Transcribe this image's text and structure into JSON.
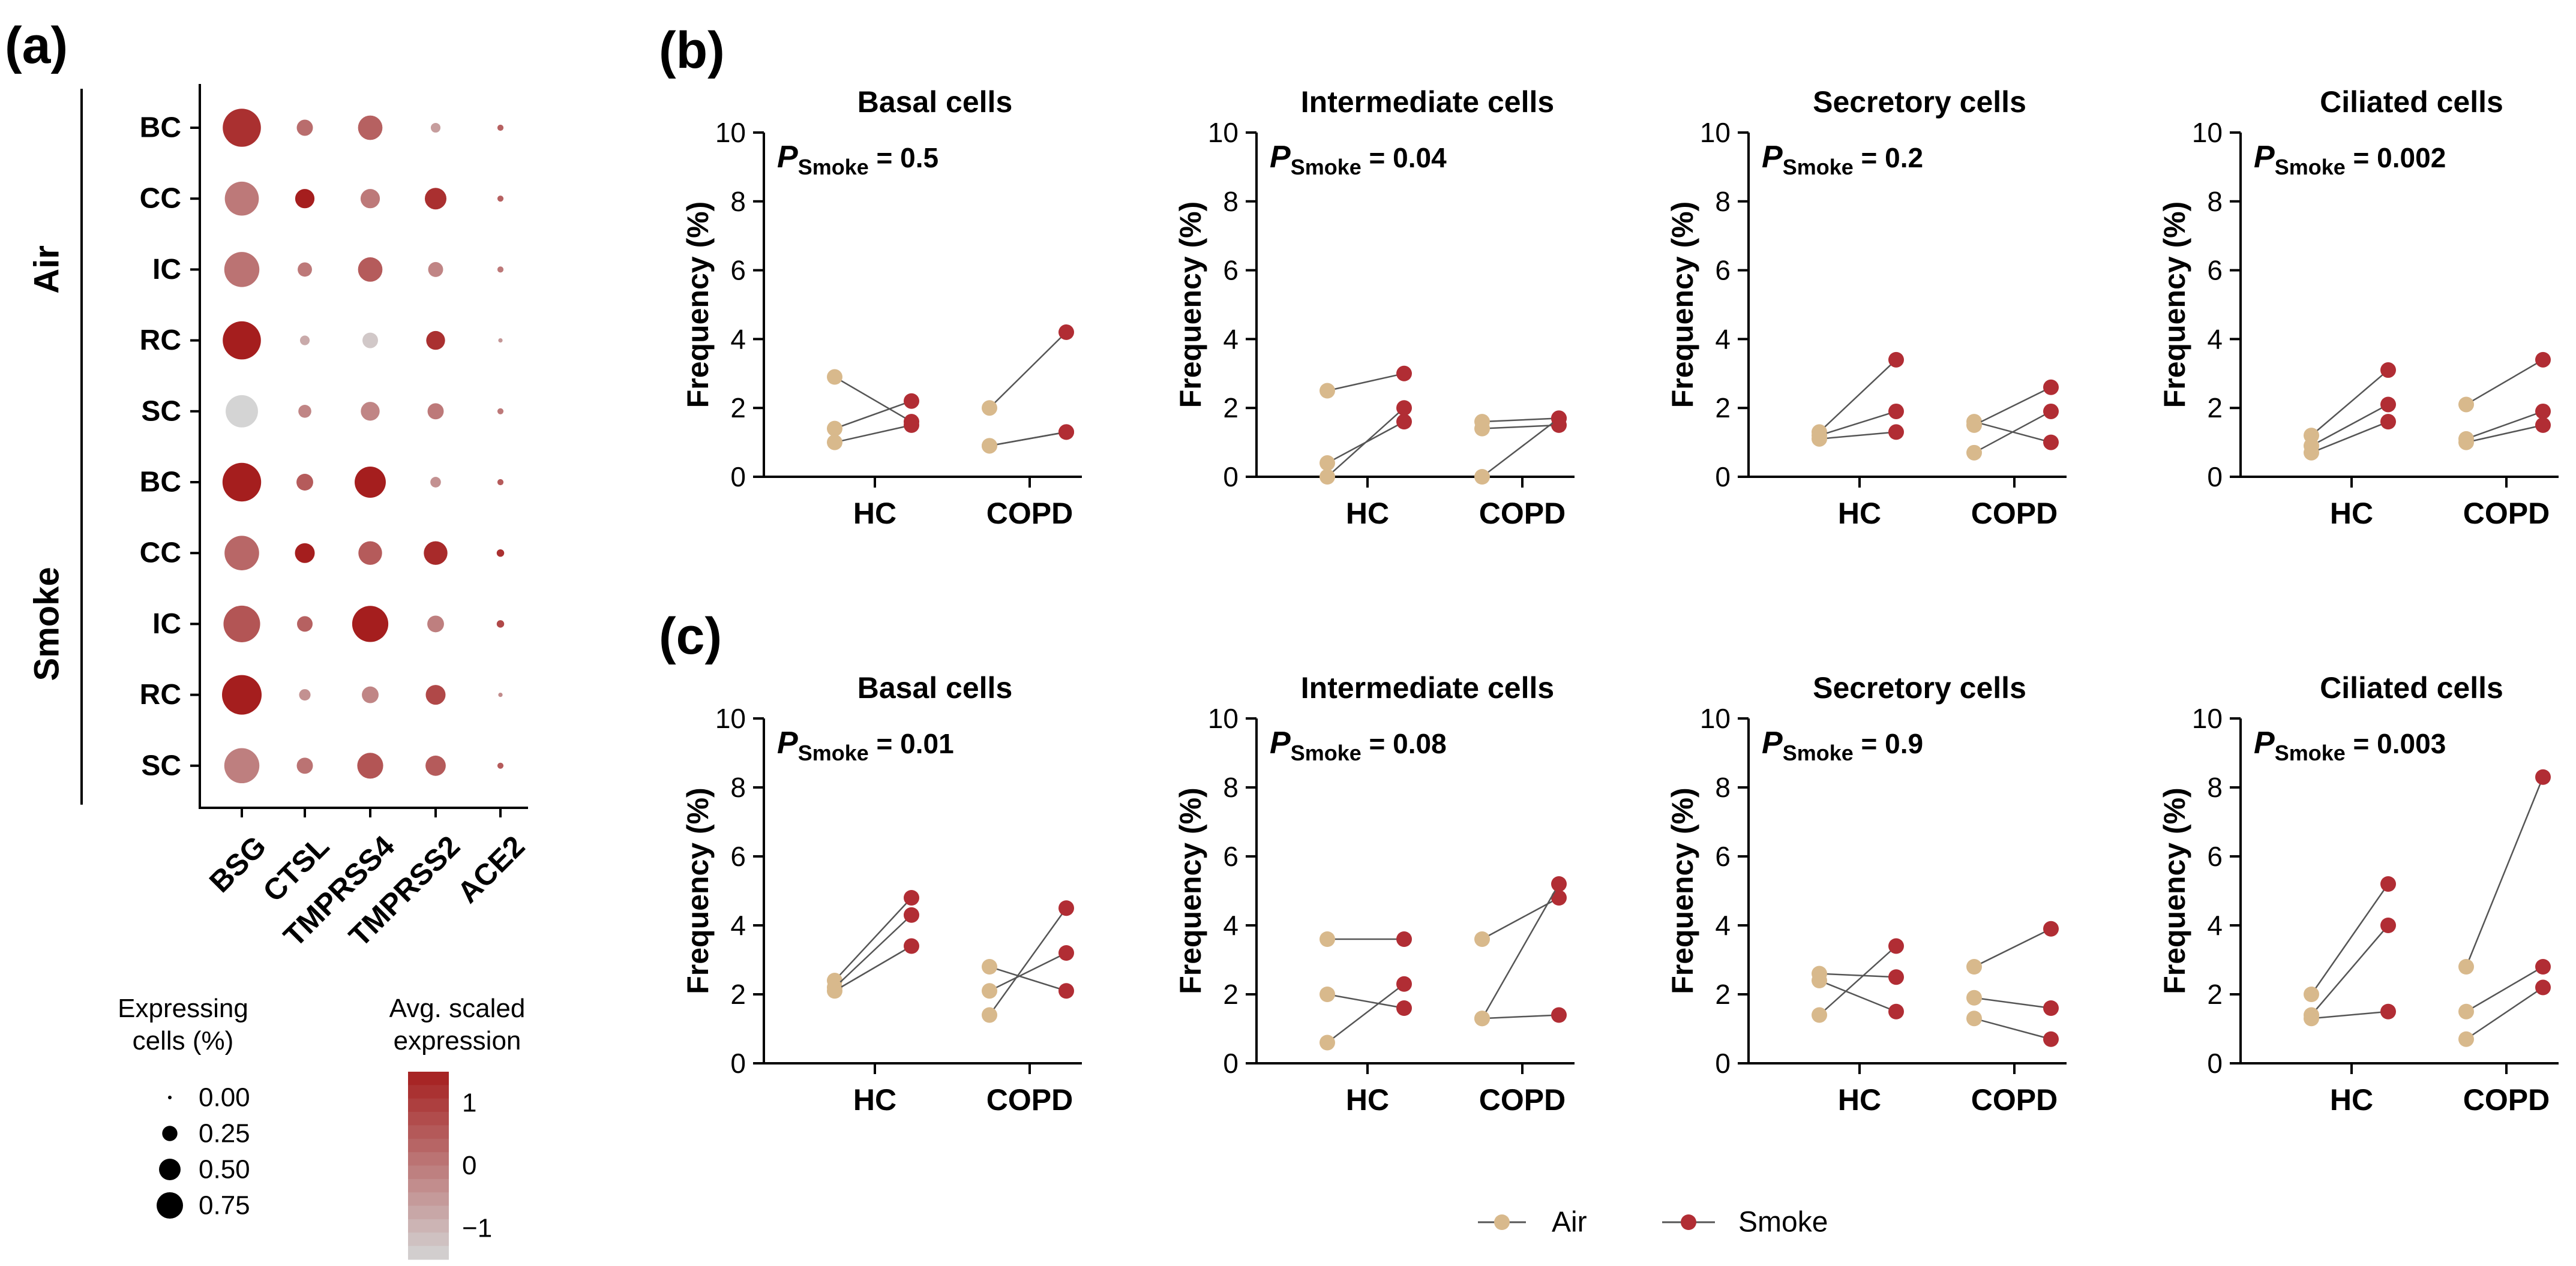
{
  "chart_data": {
    "panel_a": {
      "type": "dotplot",
      "label": "(a)",
      "groups": [
        {
          "name": "Air",
          "rows": [
            "BC",
            "CC",
            "IC",
            "RC",
            "SC"
          ]
        },
        {
          "name": "Smoke",
          "rows": [
            "BC",
            "CC",
            "IC",
            "RC",
            "SC"
          ]
        }
      ],
      "genes": [
        "BSG",
        "CTSL",
        "TMPRSS4",
        "TMPRSS2",
        "ACE2"
      ],
      "pct": [
        [
          0.78,
          0.14,
          0.32,
          0.05,
          0.02
        ],
        [
          0.62,
          0.2,
          0.2,
          0.25,
          0.02
        ],
        [
          0.66,
          0.11,
          0.32,
          0.12,
          0.02
        ],
        [
          0.78,
          0.05,
          0.13,
          0.19,
          0.01
        ],
        [
          0.56,
          0.09,
          0.19,
          0.14,
          0.02
        ],
        [
          0.8,
          0.15,
          0.52,
          0.06,
          0.02
        ],
        [
          0.64,
          0.21,
          0.3,
          0.3,
          0.03
        ],
        [
          0.72,
          0.13,
          0.7,
          0.15,
          0.03
        ],
        [
          0.84,
          0.07,
          0.15,
          0.21,
          0.01
        ],
        [
          0.66,
          0.14,
          0.36,
          0.22,
          0.02
        ]
      ],
      "expr": [
        [
          1.2,
          0.2,
          0.4,
          -0.6,
          0.4
        ],
        [
          0.0,
          1.6,
          0.0,
          1.2,
          0.4
        ],
        [
          0.1,
          0.0,
          0.5,
          -0.2,
          0.0
        ],
        [
          1.5,
          -0.8,
          -1.3,
          1.2,
          -0.5
        ],
        [
          -1.5,
          -0.2,
          -0.2,
          0.0,
          0.0
        ],
        [
          1.5,
          0.5,
          1.5,
          -0.4,
          0.5
        ],
        [
          0.3,
          1.5,
          0.5,
          1.3,
          1.2
        ],
        [
          0.6,
          0.4,
          1.7,
          -0.1,
          0.8
        ],
        [
          1.6,
          -0.4,
          -0.2,
          0.8,
          -0.3
        ],
        [
          -0.1,
          0.1,
          0.6,
          0.5,
          0.5
        ]
      ],
      "legend_size": {
        "title": [
          "Expressing",
          "cells (%)"
        ],
        "values": [
          0.0,
          0.25,
          0.5,
          0.75
        ],
        "labels": [
          "0.00",
          "0.25",
          "0.50",
          "0.75"
        ]
      },
      "legend_color": {
        "title": [
          "Avg. scaled",
          "expression"
        ],
        "ticks": [
          1,
          0,
          -1
        ],
        "labels": [
          "1",
          "0",
          "−1"
        ],
        "range": [
          -1.5,
          1.5
        ],
        "low_color": "#d4d4d4",
        "high_color": "#a51e1e"
      }
    },
    "line_panels": {
      "ylabel": "Frequency (%)",
      "ylim": [
        0,
        10
      ],
      "yticks": [
        0,
        2,
        4,
        6,
        8,
        10
      ],
      "categories": [
        "HC",
        "COPD"
      ],
      "series_names": [
        "Air",
        "Smoke"
      ],
      "colors": {
        "Air": "#d8b98c",
        "Smoke": "#b12d34",
        "line": "#555555"
      },
      "rows": [
        {
          "label": "(b)",
          "charts": [
            {
              "title": "Basal cells",
              "p_value": "0.5",
              "pairs": {
                "HC": [
                  [
                    2.9,
                    1.6
                  ],
                  [
                    1.4,
                    2.2
                  ],
                  [
                    1.0,
                    1.5
                  ]
                ],
                "COPD": [
                  [
                    2.0,
                    4.2
                  ],
                  [
                    0.9,
                    1.3
                  ],
                  [
                    0.9,
                    1.3
                  ]
                ]
              }
            },
            {
              "title": "Intermediate cells",
              "p_value": "0.04",
              "pairs": {
                "HC": [
                  [
                    2.5,
                    3.0
                  ],
                  [
                    0.4,
                    1.6
                  ],
                  [
                    0.0,
                    2.0
                  ]
                ],
                "COPD": [
                  [
                    1.6,
                    1.7
                  ],
                  [
                    1.4,
                    1.5
                  ],
                  [
                    0.0,
                    1.7
                  ]
                ]
              }
            },
            {
              "title": "Secretory cells",
              "p_value": "0.2",
              "pairs": {
                "HC": [
                  [
                    1.3,
                    3.4
                  ],
                  [
                    1.2,
                    1.9
                  ],
                  [
                    1.1,
                    1.3
                  ]
                ],
                "COPD": [
                  [
                    1.6,
                    1.0
                  ],
                  [
                    1.5,
                    2.6
                  ],
                  [
                    0.7,
                    1.9
                  ]
                ]
              }
            },
            {
              "title": "Ciliated cells",
              "p_value": "0.002",
              "pairs": {
                "HC": [
                  [
                    1.2,
                    3.1
                  ],
                  [
                    0.9,
                    2.1
                  ],
                  [
                    0.7,
                    1.6
                  ]
                ],
                "COPD": [
                  [
                    2.1,
                    3.4
                  ],
                  [
                    1.1,
                    1.9
                  ],
                  [
                    1.0,
                    1.5
                  ]
                ]
              }
            }
          ]
        },
        {
          "label": "(c)",
          "charts": [
            {
              "title": "Basal cells",
              "p_value": "0.01",
              "pairs": {
                "HC": [
                  [
                    2.4,
                    4.8
                  ],
                  [
                    2.2,
                    4.3
                  ],
                  [
                    2.1,
                    3.4
                  ]
                ],
                "COPD": [
                  [
                    2.8,
                    2.1
                  ],
                  [
                    2.1,
                    3.2
                  ],
                  [
                    1.4,
                    4.5
                  ]
                ]
              }
            },
            {
              "title": "Intermediate cells",
              "p_value": "0.08",
              "pairs": {
                "HC": [
                  [
                    3.6,
                    3.6
                  ],
                  [
                    2.0,
                    1.6
                  ],
                  [
                    0.6,
                    2.3
                  ]
                ],
                "COPD": [
                  [
                    3.6,
                    4.8
                  ],
                  [
                    1.3,
                    5.2
                  ],
                  [
                    1.3,
                    1.4
                  ]
                ]
              }
            },
            {
              "title": "Secretory cells",
              "p_value": "0.9",
              "pairs": {
                "HC": [
                  [
                    2.6,
                    2.5
                  ],
                  [
                    2.4,
                    1.5
                  ],
                  [
                    1.4,
                    3.4
                  ]
                ],
                "COPD": [
                  [
                    2.8,
                    3.9
                  ],
                  [
                    1.9,
                    1.6
                  ],
                  [
                    1.3,
                    0.7
                  ]
                ]
              }
            },
            {
              "title": "Ciliated cells",
              "p_value": "0.003",
              "pairs": {
                "HC": [
                  [
                    2.0,
                    5.2
                  ],
                  [
                    1.4,
                    4.0
                  ],
                  [
                    1.3,
                    1.5
                  ]
                ],
                "COPD": [
                  [
                    2.8,
                    8.3
                  ],
                  [
                    1.5,
                    2.8
                  ],
                  [
                    0.7,
                    2.2
                  ]
                ]
              }
            }
          ]
        }
      ]
    }
  },
  "p_symbol": "P",
  "p_subscript": "Smoke",
  "p_equals": "=",
  "legend": {
    "air": "Air",
    "smoke": "Smoke"
  }
}
